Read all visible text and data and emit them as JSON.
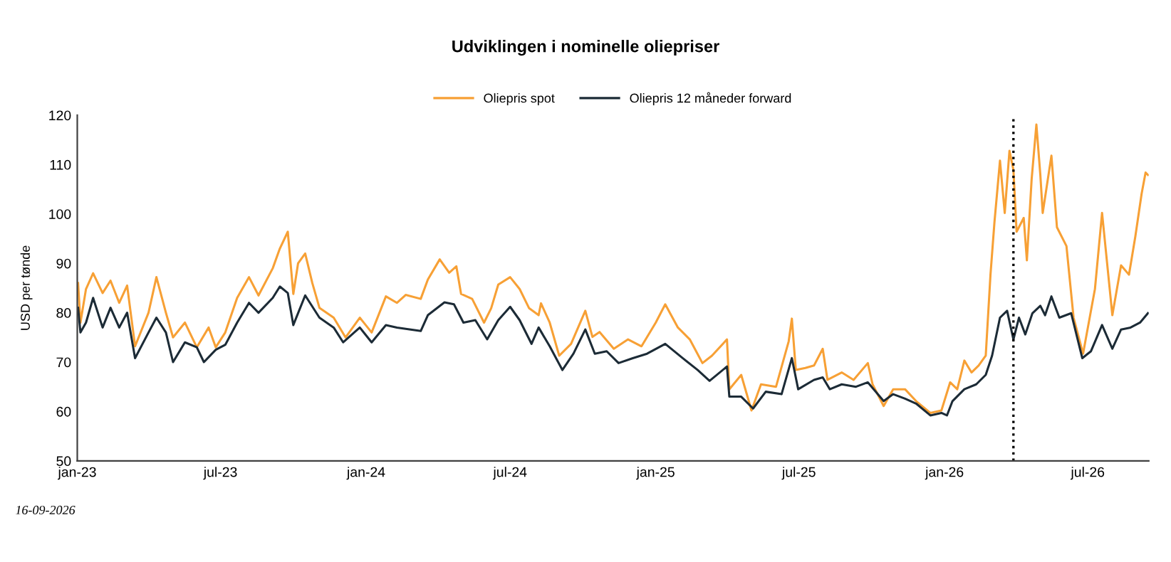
{
  "chart_data": {
    "type": "line",
    "title": "Udviklingen i nominelle oliepriser",
    "ylabel": "USD per tønde",
    "annotations": [
      "16-09-2026"
    ],
    "xlim": [
      "2023-01-01",
      "2026-09-16"
    ],
    "xticks": [
      {
        "value": "2023-01-01",
        "label": "jan-23"
      },
      {
        "value": "2023-07-01",
        "label": "jul-23"
      },
      {
        "value": "2024-01-01",
        "label": "jan-24"
      },
      {
        "value": "2024-07-01",
        "label": "jul-24"
      },
      {
        "value": "2025-01-01",
        "label": "jan-25"
      },
      {
        "value": "2025-07-01",
        "label": "jul-25"
      },
      {
        "value": "2026-01-01",
        "label": "jan-26"
      },
      {
        "value": "2026-07-01",
        "label": "jul-26"
      }
    ],
    "ylim": [
      50,
      120
    ],
    "yticks": [
      50,
      60,
      70,
      80,
      90,
      100,
      110,
      120
    ],
    "grid": false,
    "legend": "top",
    "line_style": "solid",
    "marker": "none",
    "ref_lines": [
      {
        "axis": "x",
        "value": "2026-03-29",
        "label": null,
        "color": "#000000",
        "line_style": "dotted"
      }
    ],
    "series": [
      {
        "name": "Oliepris spot",
        "color": "#f7a035",
        "x": [
          "2023-01-02",
          "2023-01-05",
          "2023-01-12",
          "2023-01-21",
          "2023-02-02",
          "2023-02-12",
          "2023-02-23",
          "2023-03-05",
          "2023-03-15",
          "2023-04-01",
          "2023-04-11",
          "2023-04-23",
          "2023-05-02",
          "2023-05-17",
          "2023-06-01",
          "2023-06-16",
          "2023-06-25",
          "2023-07-07",
          "2023-07-22",
          "2023-08-06",
          "2023-08-18",
          "2023-09-05",
          "2023-09-14",
          "2023-09-24",
          "2023-10-01",
          "2023-10-07",
          "2023-10-16",
          "2023-10-25",
          "2023-11-03",
          "2023-11-21",
          "2023-12-06",
          "2023-12-24",
          "2024-01-08",
          "2024-01-26",
          "2024-02-09",
          "2024-02-20",
          "2024-03-10",
          "2024-03-19",
          "2024-04-03",
          "2024-04-15",
          "2024-04-24",
          "2024-04-30",
          "2024-05-14",
          "2024-05-29",
          "2024-06-07",
          "2024-06-16",
          "2024-07-01",
          "2024-07-13",
          "2024-07-25",
          "2024-08-06",
          "2024-08-09",
          "2024-08-20",
          "2024-09-01",
          "2024-09-16",
          "2024-10-04",
          "2024-10-13",
          "2024-10-22",
          "2024-11-09",
          "2024-11-27",
          "2024-12-14",
          "2025-01-01",
          "2025-01-13",
          "2025-01-29",
          "2025-02-13",
          "2025-03-01",
          "2025-03-13",
          "2025-04-01",
          "2025-04-04",
          "2025-04-19",
          "2025-05-02",
          "2025-05-14",
          "2025-06-02",
          "2025-06-18",
          "2025-06-22",
          "2025-06-27",
          "2025-07-09",
          "2025-07-20",
          "2025-07-31",
          "2025-08-06",
          "2025-08-24",
          "2025-09-08",
          "2025-09-26",
          "2025-10-02",
          "2025-10-16",
          "2025-10-28",
          "2025-11-12",
          "2025-11-26",
          "2025-12-14",
          "2025-12-28",
          "2026-01-08",
          "2026-01-17",
          "2026-01-26",
          "2026-02-04",
          "2026-02-13",
          "2026-02-22",
          "2026-02-28",
          "2026-03-05",
          "2026-03-12",
          "2026-03-18",
          "2026-03-24",
          "2026-03-29",
          "2026-04-02",
          "2026-04-11",
          "2026-04-15",
          "2026-04-21",
          "2026-04-27",
          "2026-05-02",
          "2026-05-05",
          "2026-05-16",
          "2026-05-23",
          "2026-06-04",
          "2026-06-13",
          "2026-06-25",
          "2026-07-10",
          "2026-07-19",
          "2026-08-01",
          "2026-08-12",
          "2026-08-22",
          "2026-08-30",
          "2026-09-07",
          "2026-09-12",
          "2026-09-15"
        ],
        "values": [
          86,
          78,
          84.8,
          88,
          84,
          86.5,
          82,
          85.5,
          73.2,
          80,
          87.2,
          80,
          75,
          78,
          73,
          77,
          73,
          76,
          83,
          87.2,
          83.5,
          89,
          93,
          96.4,
          83.8,
          90,
          92,
          86,
          81,
          79,
          75,
          79,
          76,
          83.3,
          82,
          83.6,
          82.8,
          86.7,
          90.8,
          88.1,
          89.4,
          83.8,
          82.8,
          78,
          80.9,
          85.7,
          87.2,
          84.8,
          80.9,
          79.5,
          81.9,
          78,
          71.3,
          73.7,
          80.4,
          75.1,
          76.1,
          72.7,
          74.6,
          73.2,
          78,
          81.7,
          77,
          74.6,
          69.8,
          71.3,
          74.6,
          64.5,
          67.4,
          60.2,
          65.5,
          65,
          74.2,
          78.8,
          68.4,
          68.8,
          69.3,
          72.7,
          66.4,
          67.9,
          66.4,
          69.8,
          65.5,
          61.1,
          64.5,
          64.5,
          62.1,
          59.7,
          60.2,
          65.9,
          64.5,
          70.3,
          67.9,
          69.3,
          71.3,
          87.7,
          98.3,
          110.8,
          100.2,
          112.8,
          108.9,
          96.4,
          99.2,
          90.6,
          107,
          118.1,
          107.9,
          100.2,
          111.8,
          97.3,
          93.5,
          79,
          71.7,
          84.8,
          100.2,
          79.5,
          89.6,
          87.7,
          95.4,
          104.1,
          108.4,
          107.9
        ]
      },
      {
        "name": "Oliepris 12 måneder forward",
        "color": "#1c2b36",
        "x": [
          "2023-01-02",
          "2023-01-05",
          "2023-01-12",
          "2023-01-21",
          "2023-02-02",
          "2023-02-12",
          "2023-02-23",
          "2023-03-05",
          "2023-03-15",
          "2023-04-01",
          "2023-04-11",
          "2023-04-23",
          "2023-05-02",
          "2023-05-17",
          "2023-06-01",
          "2023-06-10",
          "2023-06-25",
          "2023-07-07",
          "2023-07-22",
          "2023-08-06",
          "2023-08-18",
          "2023-09-05",
          "2023-09-14",
          "2023-09-24",
          "2023-10-01",
          "2023-10-16",
          "2023-11-03",
          "2023-11-21",
          "2023-12-03",
          "2023-12-24",
          "2024-01-08",
          "2024-01-26",
          "2024-02-09",
          "2024-03-10",
          "2024-03-19",
          "2024-04-09",
          "2024-04-21",
          "2024-05-03",
          "2024-05-18",
          "2024-06-02",
          "2024-06-16",
          "2024-07-01",
          "2024-07-13",
          "2024-07-28",
          "2024-08-06",
          "2024-08-20",
          "2024-09-05",
          "2024-09-19",
          "2024-10-04",
          "2024-10-16",
          "2024-10-31",
          "2024-11-15",
          "2024-12-03",
          "2024-12-21",
          "2025-01-13",
          "2025-02-04",
          "2025-02-23",
          "2025-03-10",
          "2025-04-01",
          "2025-04-04",
          "2025-04-19",
          "2025-05-04",
          "2025-05-20",
          "2025-06-09",
          "2025-06-22",
          "2025-06-30",
          "2025-07-20",
          "2025-07-31",
          "2025-08-09",
          "2025-08-24",
          "2025-09-11",
          "2025-09-26",
          "2025-10-16",
          "2025-10-28",
          "2025-11-12",
          "2025-11-26",
          "2025-12-14",
          "2025-12-28",
          "2026-01-04",
          "2026-01-11",
          "2026-01-26",
          "2026-02-10",
          "2026-02-22",
          "2026-03-02",
          "2026-03-12",
          "2026-03-21",
          "2026-03-29",
          "2026-04-05",
          "2026-04-13",
          "2026-04-22",
          "2026-05-02",
          "2026-05-08",
          "2026-05-16",
          "2026-05-26",
          "2026-06-10",
          "2026-06-24",
          "2026-07-05",
          "2026-07-19",
          "2026-08-01",
          "2026-08-12",
          "2026-08-24",
          "2026-09-05",
          "2026-09-15"
        ],
        "values": [
          81,
          76,
          78,
          83,
          77,
          81,
          77,
          80,
          70.8,
          76,
          79,
          76,
          70,
          74,
          73,
          70,
          72.5,
          73.5,
          78,
          82,
          80,
          83,
          85.3,
          84,
          77.5,
          83.5,
          79,
          77,
          74,
          77,
          74,
          77.5,
          77,
          76.3,
          79.5,
          82.1,
          81.7,
          78,
          78.5,
          74.6,
          78.5,
          81.2,
          78.5,
          73.7,
          77,
          73.2,
          68.4,
          71.7,
          76.6,
          71.7,
          72.2,
          69.8,
          70.8,
          71.7,
          73.7,
          70.8,
          68.4,
          66.2,
          69.1,
          63,
          63,
          60.6,
          64,
          63.5,
          70.8,
          64.5,
          66.4,
          66.9,
          64.5,
          65.5,
          65,
          65.9,
          62.1,
          63.5,
          62.6,
          61.6,
          59.2,
          59.7,
          59.2,
          62.1,
          64.5,
          65.5,
          67.4,
          71.3,
          79,
          80.4,
          74.6,
          79,
          75.6,
          79.9,
          81.4,
          79.5,
          83.3,
          79,
          79.9,
          70.8,
          72.2,
          77.5,
          72.7,
          76.6,
          77,
          78,
          79.9
        ]
      }
    ]
  }
}
